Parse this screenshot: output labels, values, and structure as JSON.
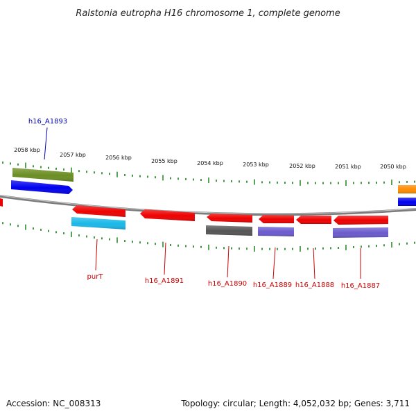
{
  "title": "Ralstonia eutropha H16 chromosome 1, complete genome",
  "footer": {
    "accession": "Accession: NC_008313",
    "summary": "Topology: circular; Length: 4,052,032 bp; Genes: 3,711"
  },
  "colors": {
    "tick": "#2e8b2e",
    "backbone": "#8c8c8c",
    "label_blue": "#0000b0",
    "label_red": "#cc0000"
  },
  "kbp_labels": [
    "2058 kbp",
    "2057 kbp",
    "2056 kbp",
    "2055 kbp",
    "2054 kbp",
    "2053 kbp",
    "2052 kbp",
    "2051 kbp",
    "2050 kbp"
  ],
  "genes": [
    {
      "id": "g-top-olive",
      "label": "h16_A1893",
      "strand": "outer",
      "color": "#6b8e23",
      "label_color": "blue"
    },
    {
      "id": "g-top-blue",
      "label": "",
      "strand": "outer",
      "color": "#0000ee"
    },
    {
      "id": "g-purT",
      "label": "purT",
      "strand": "inner",
      "color": "#ee0000"
    },
    {
      "id": "g-purT-cyan",
      "label": "",
      "strand": "inner",
      "color": "#1ab8e8"
    },
    {
      "id": "g-1891",
      "label": "h16_A1891",
      "strand": "inner",
      "color": "#ee0000"
    },
    {
      "id": "g-1890",
      "label": "h16_A1890",
      "strand": "inner",
      "color": "#ee0000"
    },
    {
      "id": "g-1890-gray",
      "label": "",
      "strand": "inner",
      "color": "#555555"
    },
    {
      "id": "g-1889",
      "label": "h16_A1889",
      "strand": "inner",
      "color": "#ee0000"
    },
    {
      "id": "g-1889-violet",
      "label": "",
      "strand": "inner",
      "color": "#6a5acd"
    },
    {
      "id": "g-1888",
      "label": "h16_A1888",
      "strand": "inner",
      "color": "#ee0000"
    },
    {
      "id": "g-1887",
      "label": "h16_A1887",
      "strand": "inner",
      "color": "#ee0000"
    },
    {
      "id": "g-1887-violet",
      "label": "",
      "strand": "inner",
      "color": "#6a5acd"
    },
    {
      "id": "g-right-orange",
      "label": "",
      "strand": "outer",
      "color": "#ff8c00"
    },
    {
      "id": "g-right-blue",
      "label": "",
      "strand": "outer",
      "color": "#0000ee"
    },
    {
      "id": "g-left-red",
      "label": "",
      "strand": "outer",
      "color": "#ee0000"
    }
  ]
}
